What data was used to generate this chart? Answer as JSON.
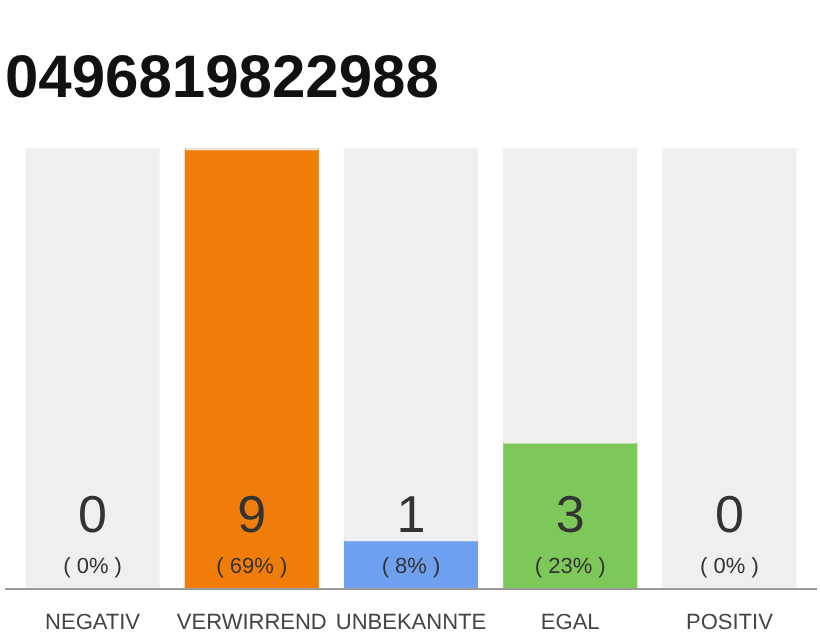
{
  "chart_data": {
    "type": "bar",
    "stacked": true,
    "title": "0496819822988",
    "categories": [
      "NEGATIV",
      "VERWIRREND",
      "UNBEKANNTE",
      "EGAL",
      "POSITIV"
    ],
    "series": [
      {
        "color": "#d0d0d0",
        "colors": [
          "#d0d0d0",
          "#f07d0a",
          "#6fa0ef",
          "#7ec85a",
          "#d0d0d0"
        ],
        "values": [
          0,
          9,
          1,
          3,
          0
        ],
        "value_labels": [
          "0\n( 0% )",
          "9\n( 69% )",
          "1\n( 8% )",
          "3\n( 23% )",
          "0\n( 0% )"
        ]
      },
      {
        "color": "#efefef",
        "values": [
          9,
          0,
          8,
          6,
          9
        ]
      }
    ],
    "ylim": [
      0,
      9
    ],
    "tick_labels": "x",
    "grid": false
  }
}
